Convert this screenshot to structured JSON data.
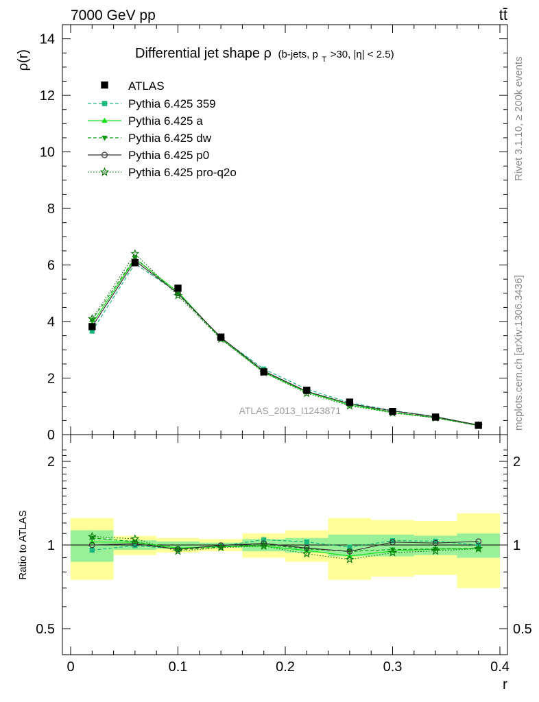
{
  "header": {
    "energy": "7000 GeV pp",
    "process": "tt̄"
  },
  "side": {
    "rivet": "Rivet 3.1.10, ≥ 200k events",
    "mcplots": "mcplots.cern.ch [arXiv:1306.3436]"
  },
  "chart_data": {
    "type": "line",
    "title": {
      "main": "Differential jet shape",
      "symbol": "ρ",
      "cond_a": "(b-jets, p",
      "cond_sub": "T",
      "cond_b": ">30, |η| < 2.5)"
    },
    "watermark": "ATLAS_2013_I1243871",
    "xlabel": "r",
    "ylabel": "ρ(r)",
    "ratio_ylabel": "Ratio to ATLAS",
    "xlim": [
      0,
      0.4
    ],
    "ylim": [
      0,
      14.5
    ],
    "ratio_ylim": [
      0.38,
      2.3
    ],
    "x_ticks": [
      {
        "v": 0,
        "label": "0"
      },
      {
        "v": 0.1,
        "label": "0.1"
      },
      {
        "v": 0.2,
        "label": "0.2"
      },
      {
        "v": 0.3,
        "label": "0.3"
      },
      {
        "v": 0.4,
        "label": "0.4"
      }
    ],
    "y_ticks": [
      {
        "v": 0,
        "label": "0"
      },
      {
        "v": 2,
        "label": "2"
      },
      {
        "v": 4,
        "label": "4"
      },
      {
        "v": 6,
        "label": "6"
      },
      {
        "v": 8,
        "label": "8"
      },
      {
        "v": 10,
        "label": "10"
      },
      {
        "v": 12,
        "label": "12"
      },
      {
        "v": 14,
        "label": "14"
      }
    ],
    "ratio_ticks": [
      {
        "v": 0.5,
        "label": "0.5"
      },
      {
        "v": 1,
        "label": "1"
      },
      {
        "v": 2,
        "label": "2"
      }
    ],
    "x": [
      0.02,
      0.06,
      0.1,
      0.14,
      0.18,
      0.22,
      0.26,
      0.3,
      0.34,
      0.38
    ],
    "bin_edges": [
      0,
      0.04,
      0.08,
      0.12,
      0.16,
      0.2,
      0.24,
      0.28,
      0.32,
      0.36,
      0.4
    ],
    "data": {
      "name": "ATLAS",
      "values": [
        3.82,
        6.08,
        5.18,
        3.45,
        2.22,
        1.57,
        1.15,
        0.82,
        0.62,
        0.33
      ],
      "band_inner": [
        0.13,
        0.04,
        0.03,
        0.02,
        0.05,
        0.06,
        0.09,
        0.09,
        0.08,
        0.1
      ],
      "band_outer": [
        0.25,
        0.08,
        0.06,
        0.05,
        0.1,
        0.13,
        0.25,
        0.23,
        0.22,
        0.3
      ]
    },
    "series": [
      {
        "name": "Pythia 6.425 359",
        "color": "#1ab87a",
        "dash": "5,3",
        "marker": "square",
        "values": [
          3.66,
          6.05,
          5.02,
          3.42,
          2.32,
          1.61,
          1.13,
          0.85,
          0.64,
          0.33
        ]
      },
      {
        "name": "Pythia 6.425 a",
        "color": "#19e019",
        "dash": "",
        "marker": "triangle-up",
        "values": [
          3.92,
          6.22,
          5.05,
          3.41,
          2.2,
          1.5,
          1.05,
          0.78,
          0.6,
          0.32
        ]
      },
      {
        "name": "Pythia 6.425 dw",
        "color": "#0f9a14",
        "dash": "5,3",
        "marker": "triangle-down",
        "values": [
          4.05,
          6.25,
          4.98,
          3.39,
          2.23,
          1.52,
          1.09,
          0.79,
          0.6,
          0.32
        ]
      },
      {
        "name": "Pythia 6.425 p0",
        "color": "#333333",
        "dash": "",
        "marker": "circle-open",
        "values": [
          3.82,
          6.15,
          5.0,
          3.44,
          2.25,
          1.53,
          1.09,
          0.84,
          0.63,
          0.34
        ]
      },
      {
        "name": "Pythia 6.425 pro-q2o",
        "color": "#0f7a0f",
        "dash": "1.5,2.5",
        "marker": "star-open",
        "values": [
          4.1,
          6.4,
          4.92,
          3.38,
          2.2,
          1.46,
          1.02,
          0.77,
          0.59,
          0.32
        ]
      }
    ]
  },
  "colors": {
    "band_inner": "#99f099",
    "band_outer": "#ffff99",
    "data": "#000000"
  }
}
